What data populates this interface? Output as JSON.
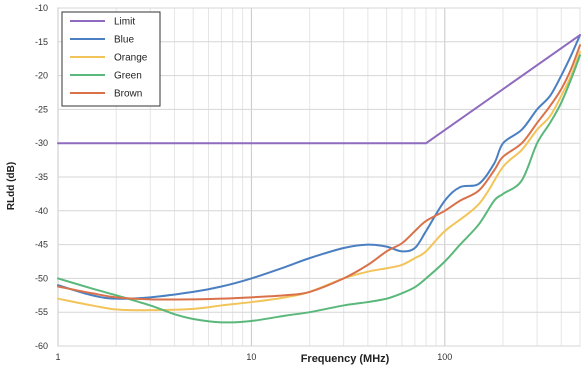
{
  "chart_data": {
    "type": "line",
    "xscale": "log",
    "xlabel": "Frequency (MHz)",
    "ylabel": "RLdd (dB)",
    "xlim": [
      1,
      500
    ],
    "ylim": [
      -60,
      -10
    ],
    "xticks": [
      1,
      10,
      100
    ],
    "yticks": [
      -10,
      -15,
      -20,
      -25,
      -30,
      -35,
      -40,
      -45,
      -50,
      -55,
      -60
    ],
    "grid": true,
    "legend_position": "top-left",
    "series": [
      {
        "name": "Limit",
        "color": "#8e6bbf",
        "points": [
          [
            1,
            -30
          ],
          [
            80,
            -30
          ],
          [
            500,
            -14
          ]
        ]
      },
      {
        "name": "Blue",
        "color": "#4a7fc1",
        "points": [
          [
            1,
            -51
          ],
          [
            1.5,
            -52.5
          ],
          [
            2,
            -53
          ],
          [
            3,
            -52.8
          ],
          [
            5,
            -52
          ],
          [
            7,
            -51.2
          ],
          [
            10,
            -50
          ],
          [
            15,
            -48.3
          ],
          [
            20,
            -47
          ],
          [
            30,
            -45.5
          ],
          [
            40,
            -45
          ],
          [
            50,
            -45.3
          ],
          [
            60,
            -46
          ],
          [
            70,
            -45.5
          ],
          [
            80,
            -43
          ],
          [
            100,
            -38.5
          ],
          [
            120,
            -36.5
          ],
          [
            150,
            -36
          ],
          [
            180,
            -33
          ],
          [
            200,
            -30
          ],
          [
            250,
            -28
          ],
          [
            300,
            -25
          ],
          [
            350,
            -23
          ],
          [
            400,
            -20
          ],
          [
            450,
            -17
          ],
          [
            500,
            -14
          ]
        ]
      },
      {
        "name": "Orange",
        "color": "#f2c45a",
        "points": [
          [
            1,
            -53
          ],
          [
            1.5,
            -54
          ],
          [
            2,
            -54.6
          ],
          [
            3,
            -54.7
          ],
          [
            5,
            -54.5
          ],
          [
            7,
            -54
          ],
          [
            10,
            -53.5
          ],
          [
            15,
            -52.8
          ],
          [
            20,
            -52
          ],
          [
            30,
            -50
          ],
          [
            40,
            -49
          ],
          [
            50,
            -48.5
          ],
          [
            60,
            -48
          ],
          [
            70,
            -47
          ],
          [
            80,
            -46
          ],
          [
            100,
            -43
          ],
          [
            150,
            -39
          ],
          [
            200,
            -33.5
          ],
          [
            250,
            -31
          ],
          [
            300,
            -28
          ],
          [
            350,
            -26
          ],
          [
            400,
            -23
          ],
          [
            450,
            -20
          ],
          [
            500,
            -16.5
          ]
        ]
      },
      {
        "name": "Green",
        "color": "#5ab87a",
        "points": [
          [
            1,
            -50
          ],
          [
            1.5,
            -51.5
          ],
          [
            2,
            -52.5
          ],
          [
            3,
            -54
          ],
          [
            4,
            -55.3
          ],
          [
            5,
            -56
          ],
          [
            7,
            -56.5
          ],
          [
            10,
            -56.3
          ],
          [
            15,
            -55.5
          ],
          [
            20,
            -55
          ],
          [
            30,
            -54
          ],
          [
            40,
            -53.5
          ],
          [
            50,
            -53
          ],
          [
            60,
            -52.2
          ],
          [
            70,
            -51.3
          ],
          [
            80,
            -50
          ],
          [
            100,
            -47.5
          ],
          [
            120,
            -45
          ],
          [
            150,
            -42
          ],
          [
            180,
            -38.5
          ],
          [
            200,
            -37.5
          ],
          [
            250,
            -35.5
          ],
          [
            300,
            -30
          ],
          [
            350,
            -27
          ],
          [
            400,
            -24
          ],
          [
            450,
            -20.5
          ],
          [
            500,
            -17
          ]
        ]
      },
      {
        "name": "Brown",
        "color": "#d9714a",
        "points": [
          [
            1,
            -51.2
          ],
          [
            1.5,
            -52.2
          ],
          [
            2,
            -52.8
          ],
          [
            3,
            -53.1
          ],
          [
            5,
            -53.1
          ],
          [
            7,
            -53
          ],
          [
            10,
            -52.8
          ],
          [
            15,
            -52.5
          ],
          [
            20,
            -52
          ],
          [
            30,
            -50
          ],
          [
            40,
            -48
          ],
          [
            50,
            -46
          ],
          [
            60,
            -44.8
          ],
          [
            70,
            -43
          ],
          [
            80,
            -41.5
          ],
          [
            100,
            -40
          ],
          [
            120,
            -38.5
          ],
          [
            150,
            -37
          ],
          [
            180,
            -34
          ],
          [
            200,
            -32
          ],
          [
            250,
            -30
          ],
          [
            300,
            -27
          ],
          [
            350,
            -24.5
          ],
          [
            400,
            -22
          ],
          [
            450,
            -19
          ],
          [
            500,
            -15.5
          ]
        ]
      }
    ]
  }
}
